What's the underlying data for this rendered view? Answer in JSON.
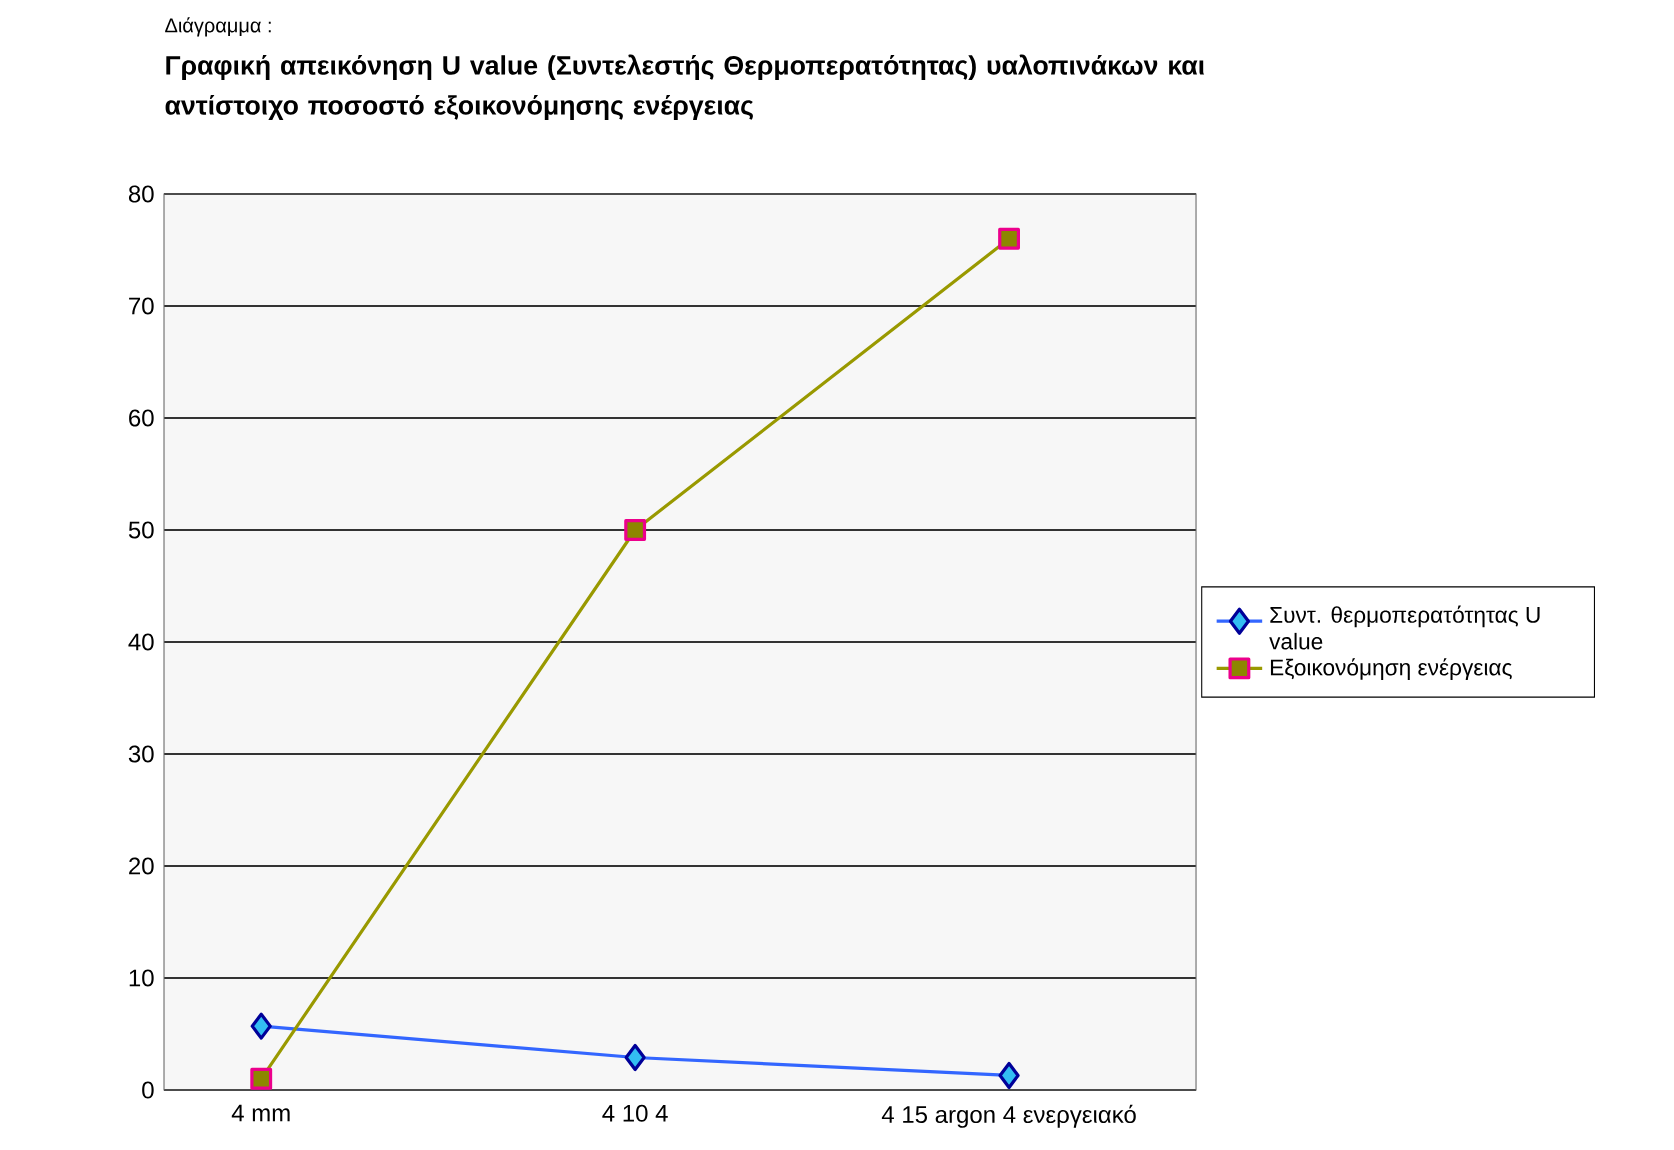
{
  "chart_data": {
    "type": "line",
    "subtitle": "Διάγραμμα :",
    "title": "Γραφική απεικόνηση U value (Συντελεστής Θερμοπερατότητας) υαλοπινάκων και αντίστοιχο ποσοστό εξοικονόμησης ενέργειας",
    "categories": [
      "4 mm",
      "4 10 4",
      "4 15 argon 4 ενεργειακό"
    ],
    "series": [
      {
        "name": "Συντ. θερμοπερατότητας U value",
        "color": "#3366ff",
        "marker": "diamond",
        "values": [
          5.7,
          2.9,
          1.3
        ]
      },
      {
        "name": "Εξοικονόμηση ενέργειας",
        "color": "#999900",
        "marker": "square",
        "values": [
          1,
          50,
          76
        ]
      }
    ],
    "ylim": [
      0,
      80
    ],
    "yticks": [
      0,
      10,
      20,
      30,
      40,
      50,
      60,
      70,
      80
    ],
    "grid": "y",
    "legend": "right"
  }
}
